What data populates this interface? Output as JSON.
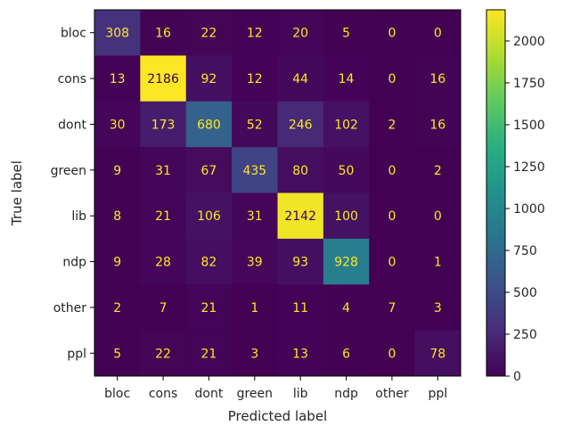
{
  "chart_data": {
    "type": "heatmap",
    "title": "",
    "xlabel": "Predicted label",
    "ylabel": "True label",
    "x_categories": [
      "bloc",
      "cons",
      "dont",
      "green",
      "lib",
      "ndp",
      "other",
      "ppl"
    ],
    "y_categories": [
      "bloc",
      "cons",
      "dont",
      "green",
      "lib",
      "ndp",
      "other",
      "ppl"
    ],
    "matrix": [
      [
        308,
        16,
        22,
        12,
        20,
        5,
        0,
        0
      ],
      [
        13,
        2186,
        92,
        12,
        44,
        14,
        0,
        16
      ],
      [
        30,
        173,
        680,
        52,
        246,
        102,
        2,
        16
      ],
      [
        9,
        31,
        67,
        435,
        80,
        50,
        0,
        2
      ],
      [
        8,
        21,
        106,
        31,
        2142,
        100,
        0,
        0
      ],
      [
        9,
        28,
        82,
        39,
        93,
        928,
        0,
        1
      ],
      [
        2,
        7,
        21,
        1,
        11,
        4,
        7,
        3
      ],
      [
        5,
        22,
        21,
        3,
        13,
        6,
        0,
        78
      ]
    ],
    "colormap": "viridis",
    "value_range": [
      0,
      2186
    ],
    "colorbar_ticks": [
      0,
      250,
      500,
      750,
      1000,
      1250,
      1500,
      1750,
      2000
    ],
    "text_color_low": "#fde725",
    "text_color_high": "#440154",
    "grid": false
  }
}
